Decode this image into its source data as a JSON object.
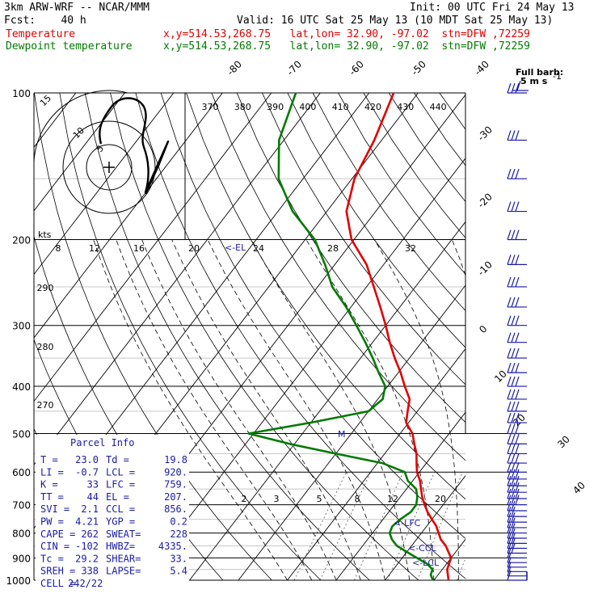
{
  "header": {
    "model": "3km ARW-WRF -- NCAR/MMM",
    "init": "Init: 00 UTC Fri 24 May 13",
    "fcst": "Fcst:    40 h",
    "valid": "Valid: 16 UTC Sat 25 May 13 (10 MDT Sat 25 May 13)",
    "temp_name": "Temperature",
    "temp_loc": "x,y=514.53,268.75   lat,lon= 32.90, -97.02  stn=DFW ,72259",
    "dew_name": "Dewpoint temperature",
    "dew_loc": "x,y=514.53,268.75   lat,lon= 32.90, -97.02  stn=DFW ,72259"
  },
  "colors": {
    "temperature": "#e00000",
    "dewpoint": "#007a00",
    "parcel": "#1a1aa6",
    "barb": "#1a1aa6",
    "grid": "#000000"
  },
  "barb_legend": {
    "title": "Full barb:",
    "value": "5 m s",
    "sup": "-1"
  },
  "parcel_info": {
    "title": "Parcel Info",
    "rows": [
      [
        "T  =",
        "23.0",
        "Td =",
        "19.8"
      ],
      [
        "LI =",
        "-0.7",
        "LCL =",
        "920."
      ],
      [
        "K  =",
        "33",
        "LFC =",
        "759."
      ],
      [
        "TT =",
        "44",
        "EL  =",
        "207."
      ],
      [
        "SVI =",
        "2.1",
        "CCL =",
        "856."
      ],
      [
        "PW =",
        "4.21",
        "YGP =",
        "0.2"
      ],
      [
        "CAPE =",
        "262",
        "SWEAT=",
        "228"
      ],
      [
        "CIN =",
        "-102",
        "HWBZ=",
        "4335."
      ],
      [
        "Tc =",
        "29.2",
        "SHEAR=",
        "33."
      ],
      [
        "SREH =",
        "338",
        "LAPSE=",
        "5.4"
      ],
      [
        "CELL =",
        "242/22",
        "",
        ""
      ]
    ]
  },
  "level_labels": {
    "lfc": "<-LFC",
    "ccl": "<-CCL",
    "lcl": "<-LCL",
    "el": "<-EL"
  },
  "hodograph": {
    "speed_unit": "kts",
    "ring_labels": [
      "5",
      "10",
      "15"
    ]
  },
  "chart_data": {
    "type": "skew-t",
    "pressure_axis": {
      "min": 1000,
      "max": 100,
      "scale": "log",
      "labels": [
        "100",
        "200",
        "300",
        "400",
        "500",
        "600",
        "700",
        "800",
        "900",
        "1000"
      ]
    },
    "isotherm_labels": [
      "-80",
      "-70",
      "-60",
      "-50",
      "-40",
      "-30",
      "-20",
      "-10",
      "0",
      "10",
      "20",
      "30",
      "40"
    ],
    "theta_labels": [
      "370",
      "380",
      "390",
      "400",
      "410",
      "420",
      "430",
      "440"
    ],
    "theta_labels_mid": [
      "290",
      "280",
      "270"
    ],
    "mixing_ratio_top": [
      "8",
      "12",
      "16",
      "20",
      "24",
      "28",
      "32"
    ],
    "mixing_ratio_bottom": [
      "2",
      "3",
      "5",
      "8",
      "12",
      "20"
    ],
    "temperature": [
      [
        1000,
        23.0
      ],
      [
        975,
        22.0
      ],
      [
        950,
        21.0
      ],
      [
        925,
        20.5
      ],
      [
        900,
        20.0
      ],
      [
        875,
        18.5
      ],
      [
        850,
        17.0
      ],
      [
        825,
        15.0
      ],
      [
        800,
        13.5
      ],
      [
        775,
        12.0
      ],
      [
        750,
        10.0
      ],
      [
        725,
        8.0
      ],
      [
        700,
        6.2
      ],
      [
        675,
        4.5
      ],
      [
        650,
        3.0
      ],
      [
        625,
        1.5
      ],
      [
        600,
        -0.5
      ],
      [
        575,
        -2.0
      ],
      [
        550,
        -3.5
      ],
      [
        525,
        -5.5
      ],
      [
        500,
        -7.5
      ],
      [
        475,
        -10.5
      ],
      [
        450,
        -12.0
      ],
      [
        425,
        -13.5
      ],
      [
        400,
        -16.5
      ],
      [
        375,
        -19.5
      ],
      [
        350,
        -23.0
      ],
      [
        325,
        -26.5
      ],
      [
        300,
        -30.0
      ],
      [
        275,
        -34.0
      ],
      [
        250,
        -38.5
      ],
      [
        225,
        -43.5
      ],
      [
        200,
        -50.5
      ],
      [
        175,
        -56.0
      ],
      [
        150,
        -59.5
      ],
      [
        125,
        -61.5
      ],
      [
        100,
        -65.0
      ]
    ],
    "dewpoint": [
      [
        1000,
        19.8
      ],
      [
        975,
        18.5
      ],
      [
        950,
        18.0
      ],
      [
        925,
        16.0
      ],
      [
        900,
        13.0
      ],
      [
        875,
        10.0
      ],
      [
        850,
        7.0
      ],
      [
        825,
        5.0
      ],
      [
        800,
        3.5
      ],
      [
        775,
        3.0
      ],
      [
        750,
        3.5
      ],
      [
        725,
        4.5
      ],
      [
        700,
        4.5
      ],
      [
        675,
        3.5
      ],
      [
        650,
        2.0
      ],
      [
        625,
        -1.0
      ],
      [
        600,
        -3.0
      ],
      [
        575,
        -9.0
      ],
      [
        550,
        -20.0
      ],
      [
        525,
        -31.0
      ],
      [
        500,
        -41.0
      ],
      [
        475,
        -30.0
      ],
      [
        450,
        -20.0
      ],
      [
        425,
        -19.0
      ],
      [
        400,
        -20.5
      ],
      [
        375,
        -24.0
      ],
      [
        350,
        -27.5
      ],
      [
        325,
        -31.5
      ],
      [
        300,
        -36.0
      ],
      [
        275,
        -41.0
      ],
      [
        250,
        -47.0
      ],
      [
        225,
        -52.0
      ],
      [
        200,
        -58.0
      ],
      [
        175,
        -67.0
      ],
      [
        150,
        -75.0
      ],
      [
        125,
        -81.0
      ],
      [
        100,
        -85.0
      ]
    ],
    "wind_barbs_pressure": [
      1000,
      980,
      960,
      940,
      920,
      900,
      880,
      860,
      840,
      820,
      800,
      780,
      760,
      740,
      720,
      700,
      680,
      660,
      640,
      620,
      600,
      575,
      550,
      525,
      500,
      475,
      450,
      425,
      400,
      375,
      350,
      325,
      300,
      275,
      250,
      225,
      200,
      175,
      150,
      125,
      100
    ]
  }
}
